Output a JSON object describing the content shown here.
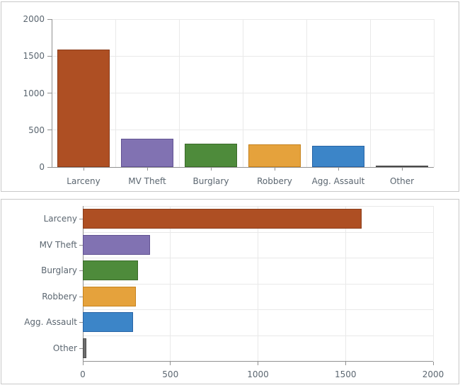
{
  "page": {
    "background": "#ffffff",
    "panel_border": "#c9c9c9"
  },
  "style": {
    "axis_color": "#919191",
    "grid_color": "#e9e9e9",
    "text_color": "#5b6670"
  },
  "chart_data": [
    {
      "type": "bar",
      "orientation": "vertical",
      "title": "",
      "xlabel": "",
      "ylabel": "",
      "legend": "none",
      "grid": true,
      "categories": [
        "Larceny",
        "MV Theft",
        "Burglary",
        "Robbery",
        "Agg. Assault",
        "Other"
      ],
      "values": [
        1590,
        385,
        315,
        305,
        285,
        20
      ],
      "bar_colors": [
        {
          "fill": "#ae4f23",
          "stroke": "#8b3d1b"
        },
        {
          "fill": "#8172b2",
          "stroke": "#615292"
        },
        {
          "fill": "#4e8b3b",
          "stroke": "#3a6b29"
        },
        {
          "fill": "#e5a23c",
          "stroke": "#c5821d"
        },
        {
          "fill": "#3c85c8",
          "stroke": "#2763a5"
        },
        {
          "fill": "#6e6e6e",
          "stroke": "#4a4a4a"
        }
      ],
      "value_axis": {
        "min": 0,
        "max": 2000,
        "ticks": [
          0,
          500,
          1000,
          1500,
          2000
        ],
        "tick_labels": [
          "0",
          "500",
          "1000",
          "1500",
          "2000"
        ]
      }
    },
    {
      "type": "bar",
      "orientation": "horizontal",
      "title": "",
      "xlabel": "",
      "ylabel": "",
      "legend": "none",
      "grid": true,
      "categories": [
        "Larceny",
        "MV Theft",
        "Burglary",
        "Robbery",
        "Agg. Assault",
        "Other"
      ],
      "values": [
        1590,
        385,
        315,
        305,
        285,
        20
      ],
      "bar_colors": [
        {
          "fill": "#ae4f23",
          "stroke": "#8b3d1b"
        },
        {
          "fill": "#8172b2",
          "stroke": "#615292"
        },
        {
          "fill": "#4e8b3b",
          "stroke": "#3a6b29"
        },
        {
          "fill": "#e5a23c",
          "stroke": "#c5821d"
        },
        {
          "fill": "#3c85c8",
          "stroke": "#2763a5"
        },
        {
          "fill": "#6e6e6e",
          "stroke": "#4a4a4a"
        }
      ],
      "value_axis": {
        "min": 0,
        "max": 2000,
        "ticks": [
          0,
          500,
          1000,
          1500,
          2000
        ],
        "tick_labels": [
          "0",
          "500",
          "1000",
          "1500",
          "2000"
        ]
      }
    }
  ]
}
